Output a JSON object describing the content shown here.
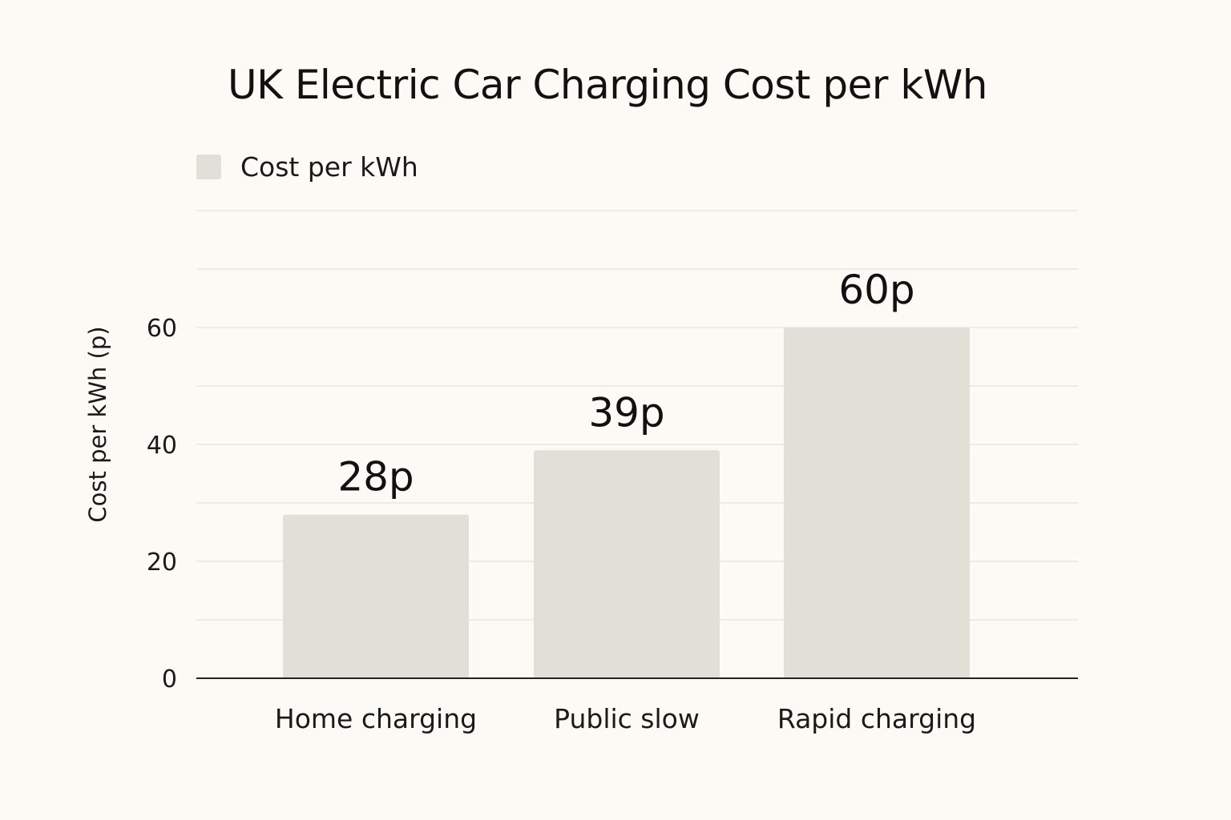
{
  "chart_data": {
    "type": "bar",
    "title": "UK Electric Car Charging Cost per kWh",
    "xlabel": "",
    "ylabel": "Cost per kWh (p)",
    "categories": [
      "Home charging",
      "Public slow",
      "Rapid charging"
    ],
    "series": [
      {
        "name": "Cost per kWh",
        "values": [
          28,
          39,
          60
        ],
        "data_labels": [
          "28p",
          "39p",
          "60p"
        ],
        "color": "#e2dfd9"
      }
    ],
    "ylim": [
      0,
      78
    ],
    "yticks": [
      0,
      20,
      40,
      60
    ],
    "grid": true,
    "legend_position": "top-left"
  },
  "colors": {
    "background": "#fcfaf5",
    "bar": "#e2dfd9",
    "grid": "#dcdcd6",
    "axis": "#222222",
    "text": "#111111"
  }
}
